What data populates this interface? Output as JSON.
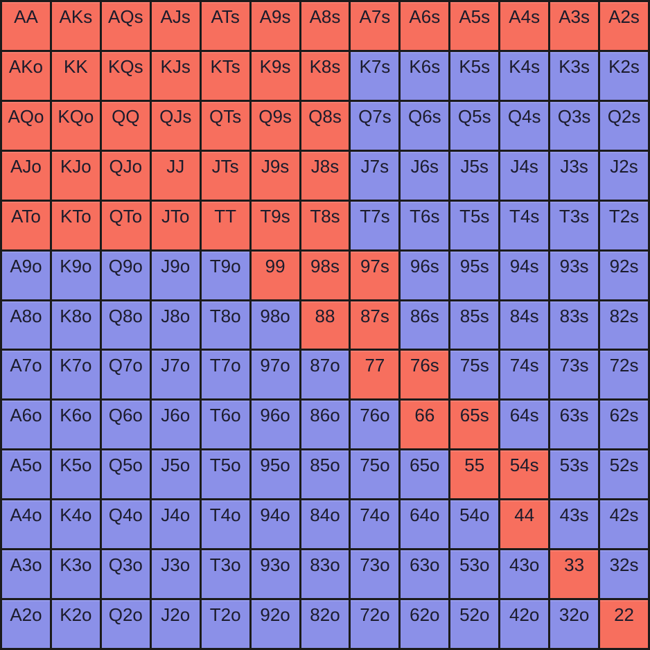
{
  "colors": {
    "cell_red": "#f76f5e",
    "cell_blue": "#8b90e8",
    "grid_line": "#1a1a1a",
    "text": "#1c1c2c"
  },
  "chart_data": {
    "type": "heatmap",
    "description": "13x13 poker starting-hand matrix; red cells are highlighted hands, blue cells are not highlighted. Diagonal = pairs, upper-right = suited (s), lower-left = offsuit (o).",
    "row_labels": [
      "A",
      "K",
      "Q",
      "J",
      "T",
      "9",
      "8",
      "7",
      "6",
      "5",
      "4",
      "3",
      "2"
    ],
    "col_labels": [
      "A",
      "K",
      "Q",
      "J",
      "T",
      "9",
      "8",
      "7",
      "6",
      "5",
      "4",
      "3",
      "2"
    ],
    "cells": [
      [
        "AA",
        "AKs",
        "AQs",
        "AJs",
        "ATs",
        "A9s",
        "A8s",
        "A7s",
        "A6s",
        "A5s",
        "A4s",
        "A3s",
        "A2s"
      ],
      [
        "AKo",
        "KK",
        "KQs",
        "KJs",
        "KTs",
        "K9s",
        "K8s",
        "K7s",
        "K6s",
        "K5s",
        "K4s",
        "K3s",
        "K2s"
      ],
      [
        "AQo",
        "KQo",
        "QQ",
        "QJs",
        "QTs",
        "Q9s",
        "Q8s",
        "Q7s",
        "Q6s",
        "Q5s",
        "Q4s",
        "Q3s",
        "Q2s"
      ],
      [
        "AJo",
        "KJo",
        "QJo",
        "JJ",
        "JTs",
        "J9s",
        "J8s",
        "J7s",
        "J6s",
        "J5s",
        "J4s",
        "J3s",
        "J2s"
      ],
      [
        "ATo",
        "KTo",
        "QTo",
        "JTo",
        "TT",
        "T9s",
        "T8s",
        "T7s",
        "T6s",
        "T5s",
        "T4s",
        "T3s",
        "T2s"
      ],
      [
        "A9o",
        "K9o",
        "Q9o",
        "J9o",
        "T9o",
        "99",
        "98s",
        "97s",
        "96s",
        "95s",
        "94s",
        "93s",
        "92s"
      ],
      [
        "A8o",
        "K8o",
        "Q8o",
        "J8o",
        "T8o",
        "98o",
        "88",
        "87s",
        "86s",
        "85s",
        "84s",
        "83s",
        "82s"
      ],
      [
        "A7o",
        "K7o",
        "Q7o",
        "J7o",
        "T7o",
        "97o",
        "87o",
        "77",
        "76s",
        "75s",
        "74s",
        "73s",
        "72s"
      ],
      [
        "A6o",
        "K6o",
        "Q6o",
        "J6o",
        "T6o",
        "96o",
        "86o",
        "76o",
        "66",
        "65s",
        "64s",
        "63s",
        "62s"
      ],
      [
        "A5o",
        "K5o",
        "Q5o",
        "J5o",
        "T5o",
        "95o",
        "85o",
        "75o",
        "65o",
        "55",
        "54s",
        "53s",
        "52s"
      ],
      [
        "A4o",
        "K4o",
        "Q4o",
        "J4o",
        "T4o",
        "94o",
        "84o",
        "74o",
        "64o",
        "54o",
        "44",
        "43s",
        "42s"
      ],
      [
        "A3o",
        "K3o",
        "Q3o",
        "J3o",
        "T3o",
        "93o",
        "83o",
        "73o",
        "63o",
        "53o",
        "43o",
        "33",
        "32s"
      ],
      [
        "A2o",
        "K2o",
        "Q2o",
        "J2o",
        "T2o",
        "92o",
        "82o",
        "72o",
        "62o",
        "52o",
        "42o",
        "32o",
        "22"
      ]
    ],
    "values": [
      [
        1,
        1,
        1,
        1,
        1,
        1,
        1,
        1,
        1,
        1,
        1,
        1,
        1
      ],
      [
        1,
        1,
        1,
        1,
        1,
        1,
        1,
        0,
        0,
        0,
        0,
        0,
        0
      ],
      [
        1,
        1,
        1,
        1,
        1,
        1,
        1,
        0,
        0,
        0,
        0,
        0,
        0
      ],
      [
        1,
        1,
        1,
        1,
        1,
        1,
        1,
        0,
        0,
        0,
        0,
        0,
        0
      ],
      [
        1,
        1,
        1,
        1,
        1,
        1,
        1,
        0,
        0,
        0,
        0,
        0,
        0
      ],
      [
        0,
        0,
        0,
        0,
        0,
        1,
        1,
        1,
        0,
        0,
        0,
        0,
        0
      ],
      [
        0,
        0,
        0,
        0,
        0,
        0,
        1,
        1,
        0,
        0,
        0,
        0,
        0
      ],
      [
        0,
        0,
        0,
        0,
        0,
        0,
        0,
        1,
        1,
        0,
        0,
        0,
        0
      ],
      [
        0,
        0,
        0,
        0,
        0,
        0,
        0,
        0,
        1,
        1,
        0,
        0,
        0
      ],
      [
        0,
        0,
        0,
        0,
        0,
        0,
        0,
        0,
        0,
        1,
        1,
        0,
        0
      ],
      [
        0,
        0,
        0,
        0,
        0,
        0,
        0,
        0,
        0,
        0,
        1,
        0,
        0
      ],
      [
        0,
        0,
        0,
        0,
        0,
        0,
        0,
        0,
        0,
        0,
        0,
        1,
        0
      ],
      [
        0,
        0,
        0,
        0,
        0,
        0,
        0,
        0,
        0,
        0,
        0,
        0,
        1
      ]
    ],
    "palette": {
      "1": "#f76f5e",
      "0": "#8b90e8"
    },
    "legend_position": "none",
    "grid": "on",
    "axis_labels": "none"
  }
}
